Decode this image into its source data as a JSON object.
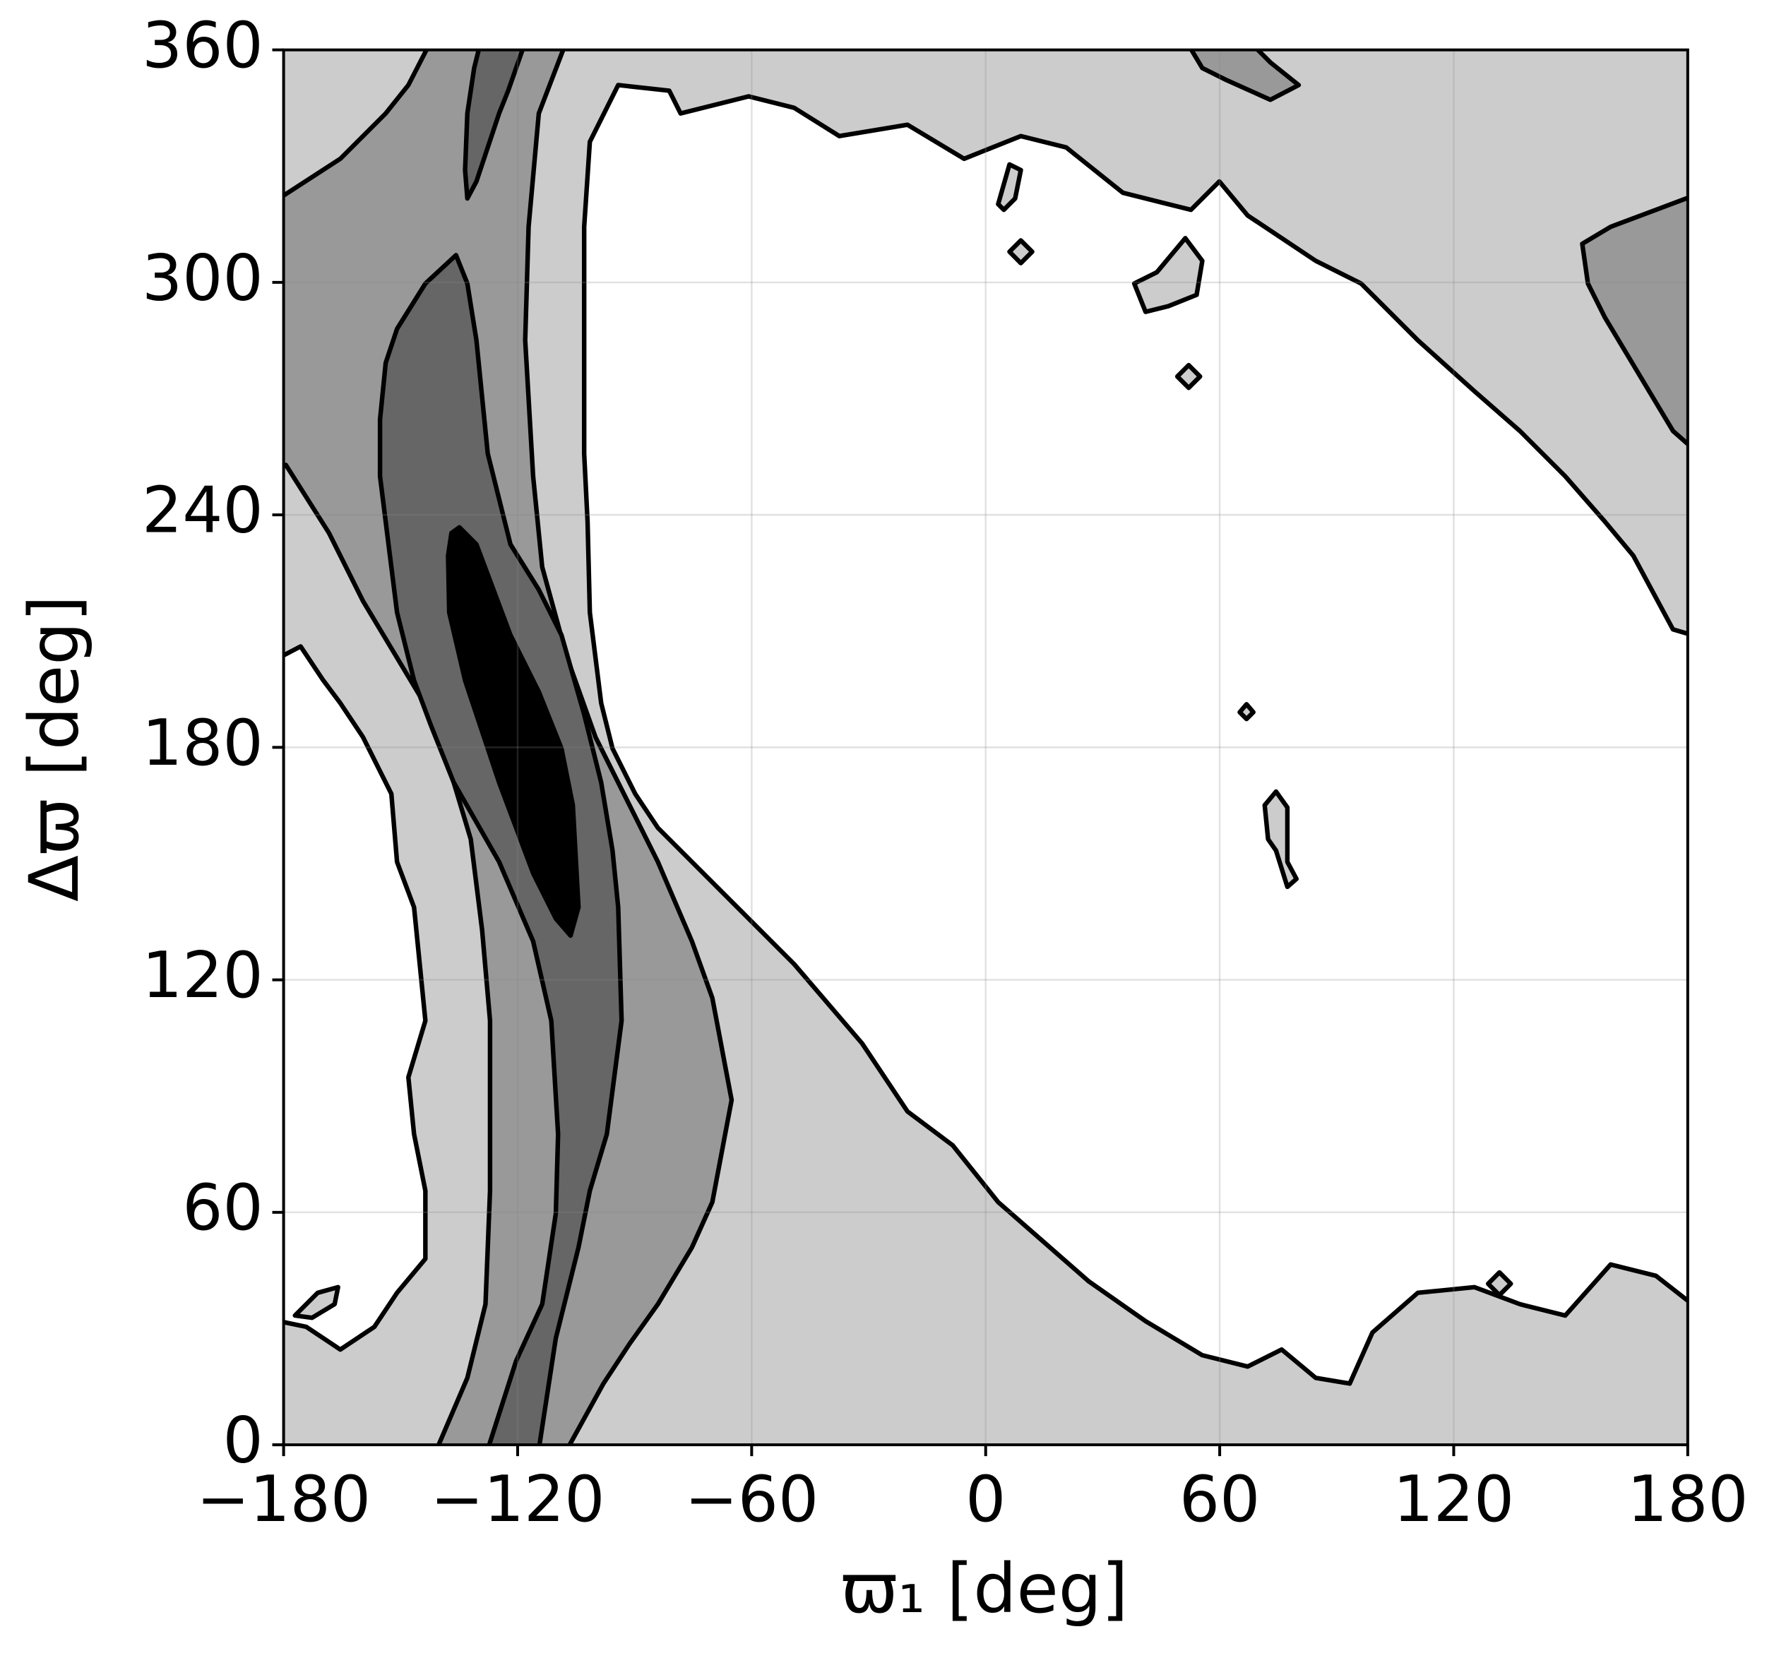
{
  "chart_data": {
    "type": "contour",
    "xlabel": "ϖ₁ [deg]",
    "ylabel": "Δϖ [deg]",
    "xlim": [
      -180,
      180
    ],
    "ylim": [
      0,
      360
    ],
    "xticks": [
      {
        "value": -180,
        "label": "−180"
      },
      {
        "value": -120,
        "label": "−120"
      },
      {
        "value": -60,
        "label": "−60"
      },
      0,
      60,
      120,
      180
    ],
    "yticks": [
      0,
      60,
      120,
      180,
      240,
      300,
      360
    ],
    "grid": true
  }
}
